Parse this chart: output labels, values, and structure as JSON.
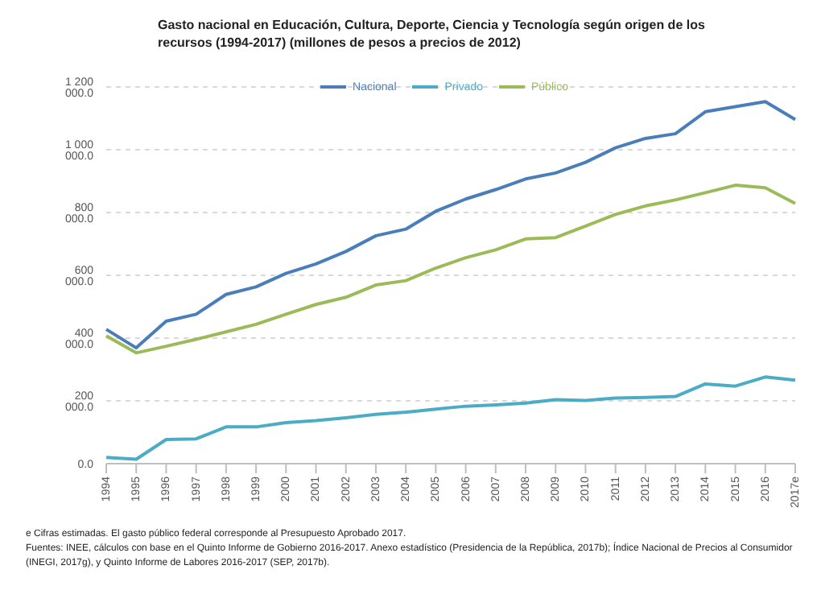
{
  "chart_data": {
    "type": "line",
    "title": "Gasto nacional  en Educación, Cultura, Deporte, Ciencia y Tecnología según origen de los recursos (1994-2017) (millones de pesos a precios de 2012)",
    "categories": [
      "1994",
      "1995",
      "1996",
      "1997",
      "1998",
      "1999",
      "2000",
      "2001",
      "2002",
      "2003",
      "2004",
      "2005",
      "2006",
      "2007",
      "2008",
      "2009",
      "2010",
      "2011",
      "2012",
      "2013",
      "2014",
      "2015",
      "2016",
      "2017e"
    ],
    "series": [
      {
        "name": "Nacional",
        "color": "#4a7ebb",
        "values": [
          428000,
          369000,
          454000,
          476000,
          539000,
          563000,
          606000,
          636000,
          676000,
          726000,
          747000,
          804000,
          843000,
          873000,
          907000,
          926000,
          960000,
          1006000,
          1036000,
          1051000,
          1121000,
          1137000,
          1153000,
          1096000
        ]
      },
      {
        "name": "Público",
        "color": "#9bbb59",
        "values": [
          407000,
          353000,
          374000,
          396000,
          420000,
          444000,
          476000,
          507000,
          530000,
          569000,
          583000,
          623000,
          656000,
          681000,
          716000,
          720000,
          757000,
          794000,
          821000,
          840000,
          863000,
          887000,
          879000,
          829000
        ]
      },
      {
        "name": "Privado",
        "color": "#4bacc6",
        "values": [
          20000,
          14000,
          77000,
          79000,
          117000,
          117000,
          131000,
          137000,
          146000,
          157000,
          164000,
          174000,
          183000,
          187000,
          193000,
          204000,
          201000,
          209000,
          211000,
          214000,
          254000,
          247000,
          276000,
          266000
        ]
      }
    ],
    "ylim": [
      0,
      1200000
    ],
    "yticks": [
      {
        "value": 0,
        "label": "0.0"
      },
      {
        "value": 200000,
        "label": "200 000.0"
      },
      {
        "value": 400000,
        "label": "400 000.0"
      },
      {
        "value": 600000,
        "label": "600 000.0"
      },
      {
        "value": 800000,
        "label": "800 000.0"
      },
      {
        "value": 1000000,
        "label": "1 000 000.0"
      },
      {
        "value": 1200000,
        "label": "1 200 000.0"
      }
    ],
    "grid": "y",
    "legend": "top",
    "marker": "none",
    "line_style": "solid",
    "annotations": [
      "e Cifras estimadas. El gasto público federal corresponde al Presupuesto Aprobado 2017.",
      "Fuentes: INEE, cálculos con base en el Quinto Informe de Gobierno 2016-2017. Anexo estadístico (Presidencia de la República, 2017b); Índice Nacional de Precios al Consumidor (INEGI, 2017g), y Quinto Informe de Labores 2016-2017 (SEP, 2017b)."
    ]
  }
}
